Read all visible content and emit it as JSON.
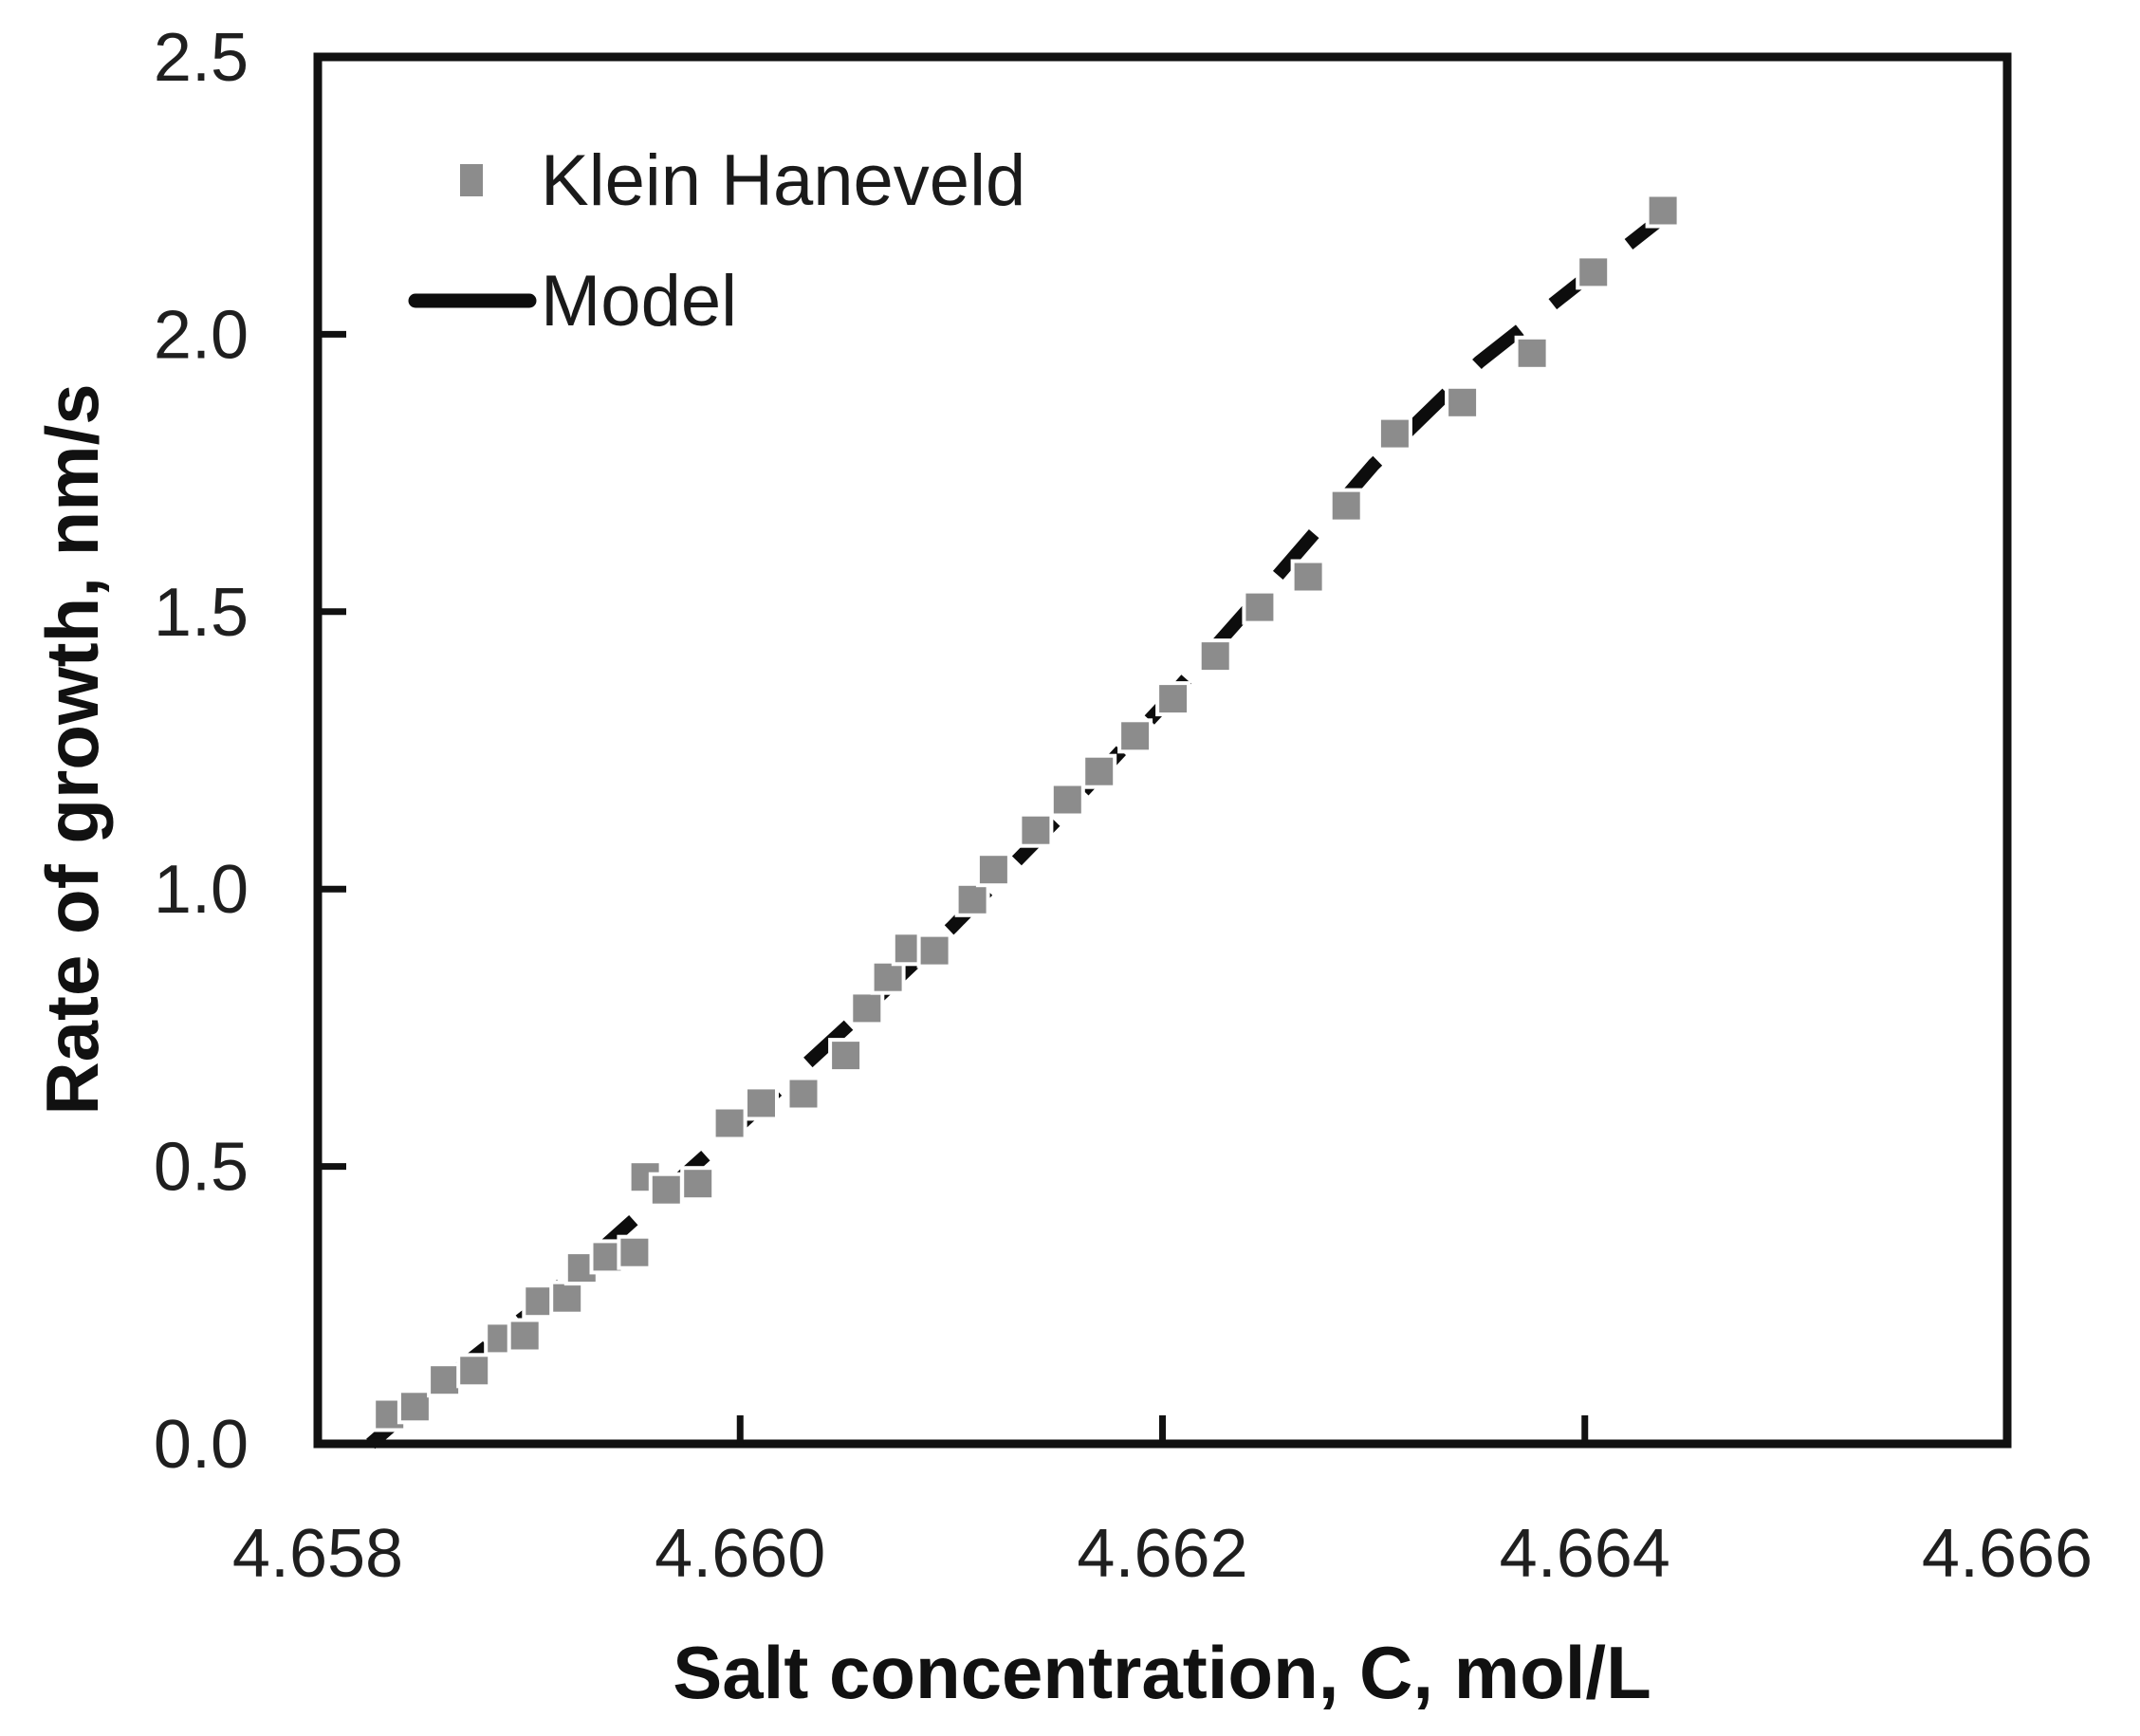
{
  "figure": {
    "background": "#ffffff",
    "frame_color": "#111111",
    "text_color": "#1a1a1a"
  },
  "chart_data": {
    "type": "scatter",
    "title": "",
    "xlabel": "Salt concentration, C, mol/L",
    "ylabel": "Rate of growth, nm/s",
    "xlim": [
      4.658,
      4.666
    ],
    "ylim": [
      0.0,
      2.5
    ],
    "grid": false,
    "xticks": {
      "values": [
        4.658,
        4.66,
        4.662,
        4.664,
        4.666
      ],
      "labels": [
        "4.658",
        "4.660",
        "4.662",
        "4.664",
        "4.666"
      ],
      "inner_tick_values": [
        4.66,
        4.662,
        4.664
      ]
    },
    "yticks": {
      "values": [
        0.0,
        0.5,
        1.0,
        1.5,
        2.0,
        2.5
      ],
      "labels": [
        "0.0",
        "0.5",
        "1.0",
        "1.5",
        "2.0",
        "2.5"
      ],
      "inner_tick_values": [
        0.5,
        1.0,
        1.5,
        2.0
      ]
    },
    "legend": {
      "position": "upper-left-inside",
      "entries": [
        {
          "label": "Klein Haneveld",
          "symbol": "square-marker",
          "color": "#8c8c8c"
        },
        {
          "label": "Model",
          "symbol": "line",
          "color": "#0d0d0d"
        }
      ]
    },
    "series": [
      {
        "name": "Klein Haneveld",
        "type": "scatter",
        "marker": "square",
        "color": "#8c8c8c",
        "points": [
          [
            4.65834,
            0.053
          ],
          [
            4.65846,
            0.067
          ],
          [
            4.6586,
            0.115
          ],
          [
            4.65874,
            0.132
          ],
          [
            4.65887,
            0.19
          ],
          [
            4.65898,
            0.195
          ],
          [
            4.65905,
            0.257
          ],
          [
            4.65918,
            0.263
          ],
          [
            4.65925,
            0.317
          ],
          [
            4.65937,
            0.337
          ],
          [
            4.6595,
            0.345
          ],
          [
            4.65955,
            0.481
          ],
          [
            4.65965,
            0.458
          ],
          [
            4.6598,
            0.469
          ],
          [
            4.65995,
            0.578
          ],
          [
            4.6601,
            0.614
          ],
          [
            4.6603,
            0.631
          ],
          [
            4.6605,
            0.7
          ],
          [
            4.6606,
            0.785
          ],
          [
            4.6607,
            0.841
          ],
          [
            4.6608,
            0.893
          ],
          [
            4.66092,
            0.889
          ],
          [
            4.6611,
            0.981
          ],
          [
            4.6612,
            1.035
          ],
          [
            4.6614,
            1.106
          ],
          [
            4.66155,
            1.161
          ],
          [
            4.6617,
            1.212
          ],
          [
            4.66187,
            1.276
          ],
          [
            4.66205,
            1.343
          ],
          [
            4.66225,
            1.42
          ],
          [
            4.66246,
            1.508
          ],
          [
            4.66269,
            1.563
          ],
          [
            4.66287,
            1.691
          ],
          [
            4.6631,
            1.821
          ],
          [
            4.66342,
            1.877
          ],
          [
            4.66375,
            1.966
          ],
          [
            4.66404,
            2.112
          ],
          [
            4.66437,
            2.223
          ]
        ]
      },
      {
        "name": "Model",
        "type": "line",
        "color": "#0d0d0d",
        "appearance": "thick dashed in plot, solid swatch in legend",
        "points": [
          [
            4.65825,
            0.0
          ],
          [
            4.6586,
            0.115
          ],
          [
            4.659,
            0.235
          ],
          [
            4.6595,
            0.405
          ],
          [
            4.66,
            0.575
          ],
          [
            4.6605,
            0.75
          ],
          [
            4.661,
            0.93
          ],
          [
            4.6615,
            1.125
          ],
          [
            4.662,
            1.33
          ],
          [
            4.6625,
            1.545
          ],
          [
            4.663,
            1.765
          ],
          [
            4.6635,
            1.95
          ],
          [
            4.664,
            2.1
          ],
          [
            4.66445,
            2.235
          ]
        ]
      }
    ]
  }
}
